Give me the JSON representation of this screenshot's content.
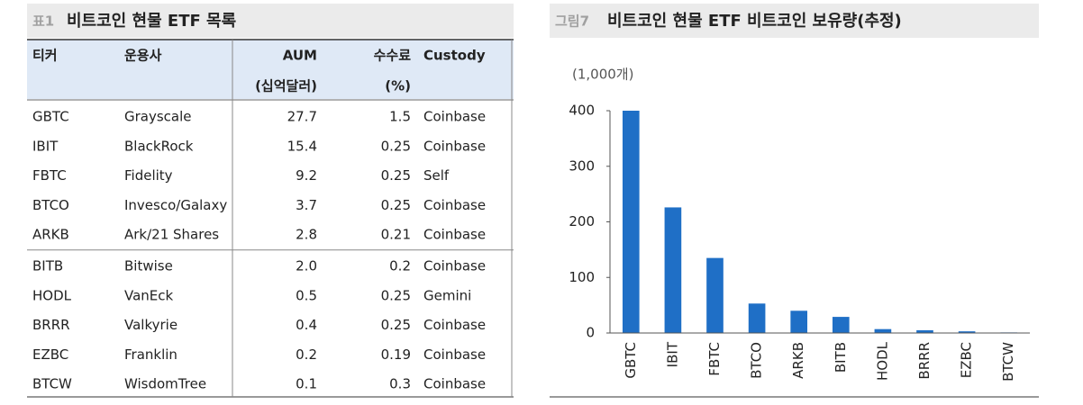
{
  "table": {
    "label": "표1",
    "title": "비트코인 현물 ETF 목록",
    "headers": [
      "티커",
      "운용사",
      "AUM",
      "수수료",
      "Custody"
    ],
    "header_units": [
      "(십억달러)",
      "(%)"
    ],
    "rows": [
      [
        "GBTC",
        "Grayscale",
        "27.7",
        "1.5",
        "Coinbase"
      ],
      [
        "IBIT",
        "BlackRock",
        "15.4",
        "0.25",
        "Coinbase"
      ],
      [
        "FBTC",
        "Fidelity",
        "9.2",
        "0.25",
        "Self"
      ],
      [
        "BTCO",
        "Invesco/Galaxy",
        "3.7",
        "0.25",
        "Coinbase"
      ],
      [
        "ARKB",
        "Ark/21 Shares",
        "2.8",
        "0.21",
        "Coinbase"
      ],
      [
        "BITB",
        "Bitwise",
        "2.0",
        "0.2",
        "Coinbase"
      ],
      [
        "HODL",
        "VanEck",
        "0.5",
        "0.25",
        "Gemini"
      ],
      [
        "BRRR",
        "Valkyrie",
        "0.4",
        "0.25",
        "Coinbase"
      ],
      [
        "EZBC",
        "Franklin",
        "0.2",
        "0.19",
        "Coinbase"
      ],
      [
        "BTCW",
        "WisdomTree",
        "0.1",
        "0.3",
        "Coinbase"
      ]
    ]
  },
  "chart_data": {
    "type": "bar",
    "label": "그림7",
    "title": "비트코인 현물 ETF 비트코인 보유량(추정)",
    "unit": "(1,000개)",
    "categories": [
      "GBTC",
      "IBIT",
      "FBTC",
      "BTCO",
      "ARKB",
      "BITB",
      "HODL",
      "BRRR",
      "EZBC",
      "BTCW"
    ],
    "values": [
      400,
      226,
      135,
      53,
      40,
      29,
      7,
      5,
      3,
      1
    ],
    "color": "#1f6fc6",
    "ylim": [
      0,
      400
    ],
    "yticks": [
      0,
      100,
      200,
      300,
      400
    ],
    "grid": false
  }
}
